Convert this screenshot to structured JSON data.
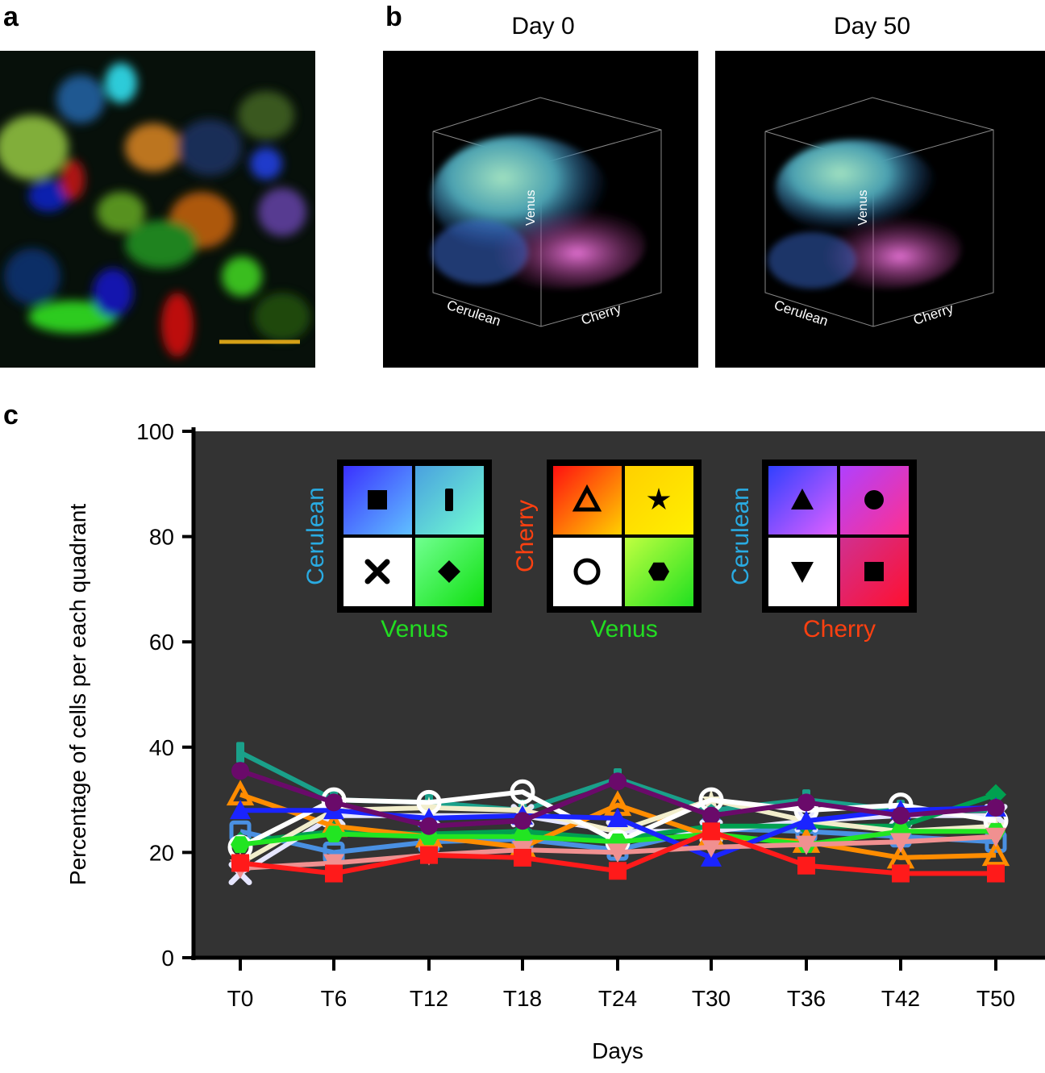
{
  "panels": {
    "a": "a",
    "b": "b",
    "c": "c"
  },
  "panel_b": {
    "day0_label": "Day 0",
    "day50_label": "Day 50",
    "axis_venus": "Venus",
    "axis_cerulean": "Cerulean",
    "axis_cherry": "Cherry"
  },
  "legend": [
    {
      "ylabel": "Cerulean",
      "ycolor": "#29abe2",
      "xlabel": "Venus",
      "xcolor": "#22dd22",
      "cells": [
        [
          "square",
          "#3a30ff",
          "#60c0ff"
        ],
        [
          "bar",
          "#4aa0e0",
          "#70ffd0"
        ],
        [
          "x",
          "#ffffff",
          "#ffffff"
        ],
        [
          "diamond",
          "#70ff90",
          "#10e010"
        ]
      ]
    },
    {
      "ylabel": "Cherry",
      "ycolor": "#ff4010",
      "xlabel": "Venus",
      "xcolor": "#22dd22",
      "cells": [
        [
          "triangle-open",
          "#ff1010",
          "#ffd000"
        ],
        [
          "star",
          "#ffd000",
          "#fff000"
        ],
        [
          "circle-open",
          "#ffffff",
          "#ffffff"
        ],
        [
          "hexagon",
          "#c0ff40",
          "#20e020"
        ]
      ]
    },
    {
      "ylabel": "Cerulean",
      "ycolor": "#29abe2",
      "xlabel": "Cherry",
      "xcolor": "#ff4010",
      "cells": [
        [
          "triangle",
          "#3040ff",
          "#e060ff"
        ],
        [
          "circle",
          "#b040ff",
          "#ff3090"
        ],
        [
          "triangle-down",
          "#ffffff",
          "#ffffff"
        ],
        [
          "square",
          "#d03090",
          "#ff1030"
        ]
      ]
    }
  ],
  "chart_data": {
    "type": "line",
    "title": "",
    "xlabel": "Days",
    "ylabel": "Percentage of cells per each quadrant",
    "categories": [
      "T0",
      "T6",
      "T12",
      "T18",
      "T24",
      "T30",
      "T36",
      "T42",
      "T50"
    ],
    "ylim": [
      0,
      100
    ],
    "yticks": [
      0,
      20,
      40,
      60,
      80,
      100
    ],
    "background": "#333333",
    "series": [
      {
        "name": "Cerulean-Venus high/low square",
        "color": "#4a90e2",
        "marker": "square-open",
        "values": [
          24,
          20,
          22,
          22.5,
          20.5,
          24.5,
          24,
          23,
          22
        ]
      },
      {
        "name": "Cerulean-Venus bar",
        "color": "#1aa08a",
        "marker": "bar",
        "values": [
          39,
          30,
          29.5,
          28,
          34,
          28,
          30,
          28,
          28
        ]
      },
      {
        "name": "Cerulean-Venus x",
        "color": "#e6e6ff",
        "marker": "x",
        "values": [
          16,
          27,
          27,
          27,
          24,
          24,
          26,
          27,
          27
        ]
      },
      {
        "name": "Cerulean-Venus diamond",
        "color": "#00a050",
        "marker": "diamond",
        "values": [
          22,
          24,
          23.5,
          24,
          22.5,
          25,
          25,
          25,
          31
        ]
      },
      {
        "name": "Cherry-Venus triangle",
        "color": "#ff8c00",
        "marker": "triangle-open",
        "values": [
          31,
          25,
          23,
          21,
          29,
          23,
          22,
          19,
          19.5
        ]
      },
      {
        "name": "Cherry-Venus star",
        "color": "#f2eecc",
        "marker": "star",
        "values": [
          18,
          28,
          28.5,
          28,
          24,
          30,
          26,
          24,
          25
        ]
      },
      {
        "name": "Cherry-Venus circle",
        "color": "#ffffff",
        "marker": "circle-open",
        "values": [
          21,
          30,
          29.5,
          31.5,
          22,
          30,
          28,
          29,
          26
        ]
      },
      {
        "name": "Cherry-Venus hexagon",
        "color": "#22e522",
        "marker": "hexagon",
        "values": [
          21.5,
          23.5,
          23,
          23,
          22,
          23.5,
          21.5,
          24,
          24
        ]
      },
      {
        "name": "Cerulean-Cherry triangle",
        "color": "#1a24ff",
        "marker": "triangle",
        "values": [
          28,
          28,
          26.5,
          27,
          26.5,
          19,
          26,
          28,
          28.5
        ]
      },
      {
        "name": "Cerulean-Cherry circle",
        "color": "#6a0a6a",
        "marker": "circle",
        "values": [
          35.5,
          29.5,
          25,
          26,
          33.5,
          27,
          29.5,
          27,
          28.5
        ]
      },
      {
        "name": "Cerulean-Cherry triangle-down",
        "color": "#f09090",
        "marker": "triangle-down",
        "values": [
          17,
          18,
          19.5,
          20.5,
          20,
          21,
          21.5,
          22,
          23
        ]
      },
      {
        "name": "Cerulean-Cherry square",
        "color": "#ff1a1a",
        "marker": "square",
        "values": [
          18,
          16,
          19.5,
          19,
          16.5,
          24,
          17.5,
          16,
          16
        ]
      }
    ]
  }
}
